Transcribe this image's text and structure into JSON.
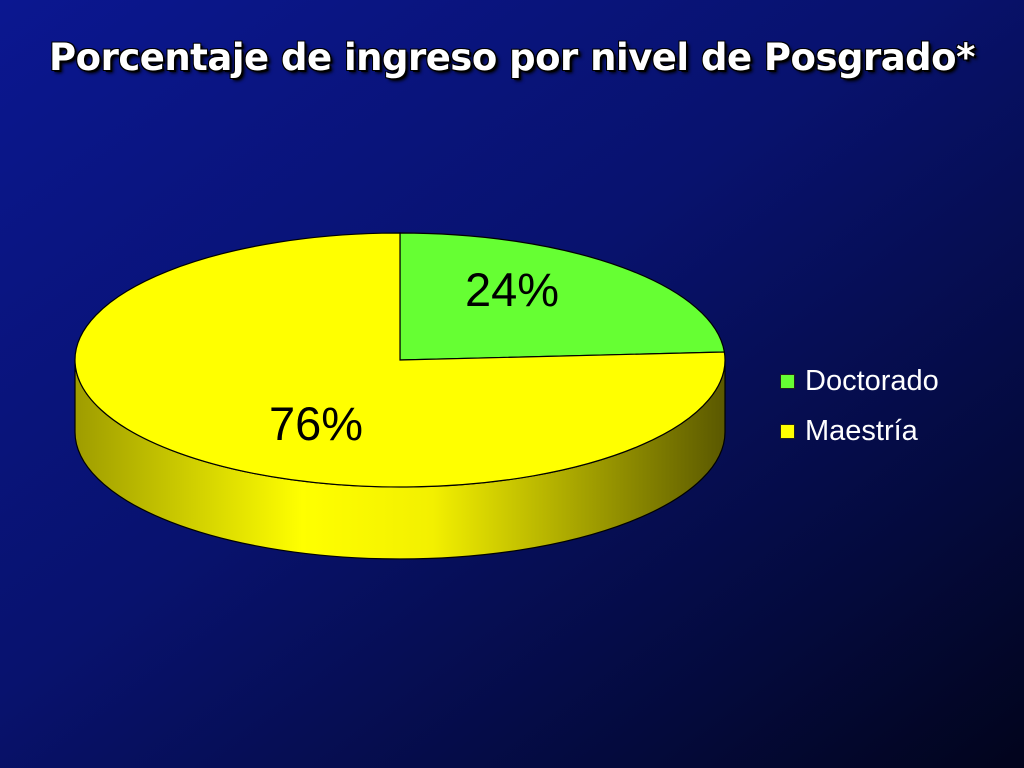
{
  "title": "Porcentaje de ingreso por nivel de Posgrado*",
  "colors": {
    "doctorado": "#66ff33",
    "maestria": "#ffff00"
  },
  "chart_data": {
    "type": "pie",
    "title": "Porcentaje de ingreso por nivel de Posgrado*",
    "categories": [
      "Doctorado",
      "Maestría"
    ],
    "values": [
      24,
      76
    ],
    "data_labels": [
      "24%",
      "76%"
    ],
    "legend_position": "right",
    "style": "3d"
  }
}
